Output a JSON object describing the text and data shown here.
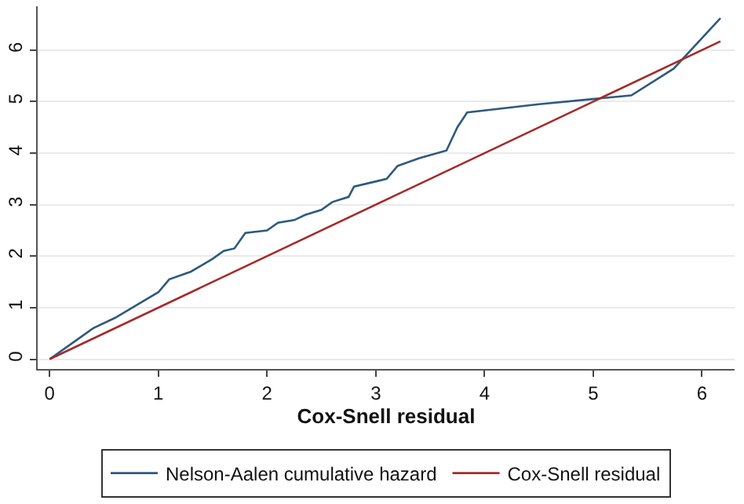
{
  "chart_data": {
    "type": "line",
    "xlabel": "Cox-Snell residual",
    "xlim": [
      -0.11,
      6.3
    ],
    "xticks": [
      0,
      1,
      2,
      3,
      4,
      5,
      6
    ],
    "ylim": [
      -0.19,
      6.85
    ],
    "yticks": [
      0,
      1,
      2,
      3,
      4,
      5,
      6
    ],
    "grid": "y",
    "legend": "bottom",
    "line_style": "solid",
    "marker": "none",
    "series": [
      {
        "name": "Nelson-Aalen cumulative hazard",
        "color": "#2e5a7e",
        "x": [
          0,
          0.2,
          0.4,
          0.6,
          0.8,
          1.0,
          1.1,
          1.3,
          1.5,
          1.6,
          1.7,
          1.8,
          2.0,
          2.1,
          2.25,
          2.35,
          2.5,
          2.6,
          2.75,
          2.8,
          3.0,
          3.1,
          3.2,
          3.4,
          3.65,
          3.75,
          3.84,
          4.5,
          5.0,
          5.35,
          5.74,
          6.17
        ],
        "values": [
          0,
          0.3,
          0.6,
          0.8,
          1.05,
          1.3,
          1.55,
          1.7,
          1.95,
          2.1,
          2.15,
          2.45,
          2.5,
          2.65,
          2.7,
          2.8,
          2.9,
          3.05,
          3.15,
          3.35,
          3.45,
          3.5,
          3.75,
          3.9,
          4.05,
          4.5,
          4.79,
          4.95,
          5.05,
          5.12,
          5.64,
          6.62
        ]
      },
      {
        "name": "Cox-Snell residual",
        "color": "#a52a2a",
        "x": [
          0,
          6.17
        ],
        "values": [
          0,
          6.17
        ]
      }
    ]
  }
}
